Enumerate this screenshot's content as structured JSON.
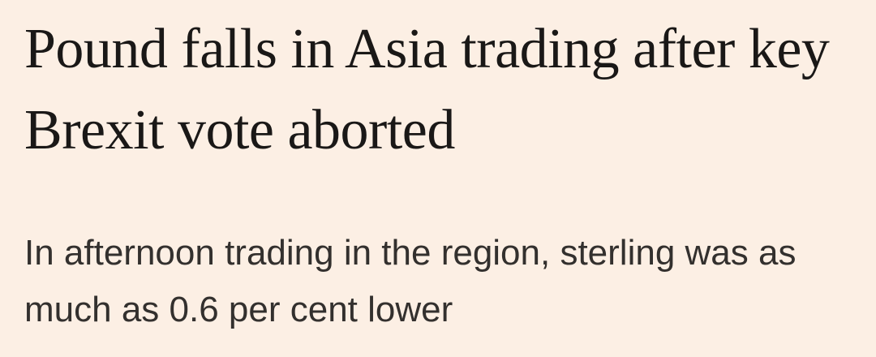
{
  "headline": {
    "title": "Pound falls in Asia trading after key Brexit vote aborted",
    "standfirst": "In afternoon trading in the region, sterling was as much as 0.6 per cent lower"
  }
}
